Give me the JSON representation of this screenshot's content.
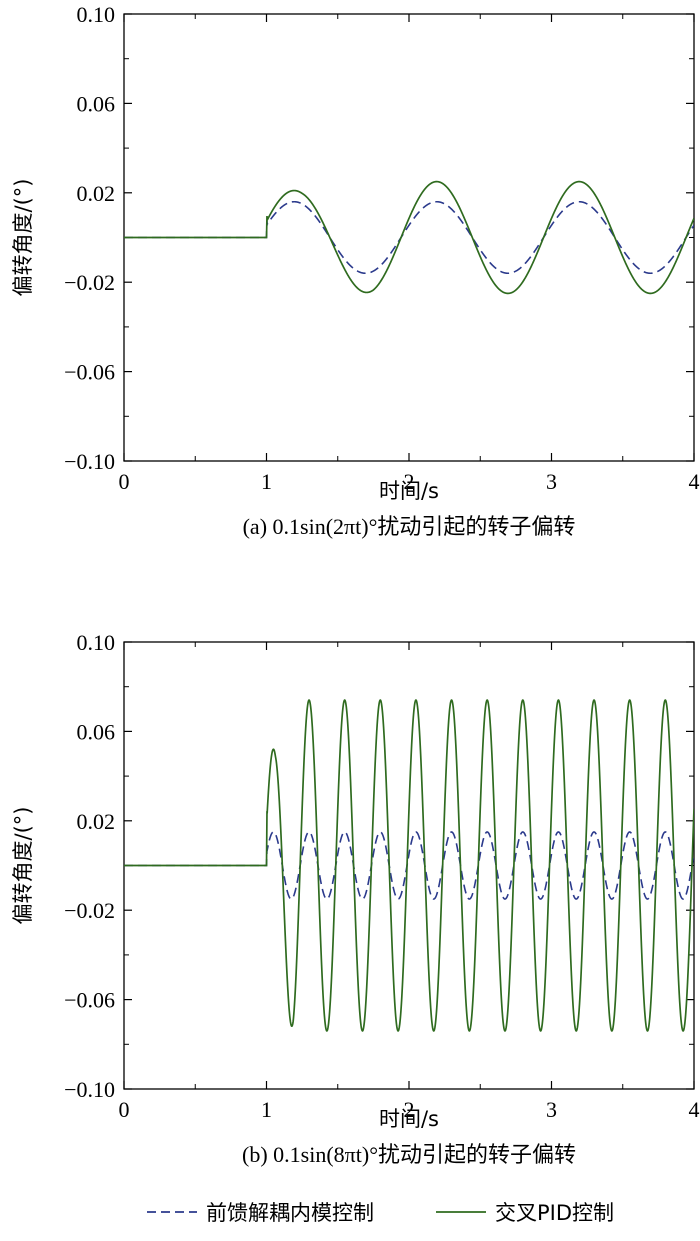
{
  "chart_data": [
    {
      "type": "line",
      "xlabel": "时间/s",
      "ylabel": "偏转角度/(°)",
      "caption": "(a) 0.1sin(2πt)°扰动引起的转子偏转",
      "xlim": [
        0,
        4
      ],
      "ylim": [
        -0.1,
        0.1
      ],
      "xticks": [
        "0",
        "1",
        "2",
        "3",
        "4"
      ],
      "yticks": [
        "0.10",
        "0.06",
        "0.02",
        "−0.02",
        "−0.06",
        "−0.10"
      ],
      "disturbance_start": 1.0,
      "series": [
        {
          "name": "前馈解耦内模控制",
          "style": "dashed",
          "color": "#2b3a8c",
          "frequency_hz": 1,
          "amplitude": 0.016,
          "first_peak": 0.016,
          "offset": 0.0
        },
        {
          "name": "交叉PID控制",
          "style": "solid",
          "color": "#2f6b1f",
          "frequency_hz": 1,
          "amplitude": 0.025,
          "first_peak": 0.021,
          "offset": 0.0
        }
      ]
    },
    {
      "type": "line",
      "xlabel": "时间/s",
      "ylabel": "偏转角度/(°)",
      "caption": "(b) 0.1sin(8πt)°扰动引起的转子偏转",
      "xlim": [
        0,
        4
      ],
      "ylim": [
        -0.1,
        0.1
      ],
      "xticks": [
        "0",
        "1",
        "2",
        "3",
        "4"
      ],
      "yticks": [
        "0.10",
        "0.06",
        "0.02",
        "−0.02",
        "−0.06",
        "−0.10"
      ],
      "disturbance_start": 1.0,
      "series": [
        {
          "name": "前馈解耦内模控制",
          "style": "dashed",
          "color": "#2b3a8c",
          "frequency_hz": 4,
          "amplitude": 0.015,
          "first_peak": 0.015,
          "offset": 0.0
        },
        {
          "name": "交叉PID控制",
          "style": "solid",
          "color": "#2f6b1f",
          "frequency_hz": 4,
          "amplitude": 0.074,
          "first_peak": 0.052,
          "offset": 0.0
        }
      ]
    }
  ],
  "legend": {
    "items": [
      {
        "label": "前馈解耦内模控制",
        "style": "dashed",
        "color": "#2b3a8c"
      },
      {
        "label": "交叉PID控制",
        "style": "solid",
        "color": "#2f6b1f"
      }
    ]
  }
}
